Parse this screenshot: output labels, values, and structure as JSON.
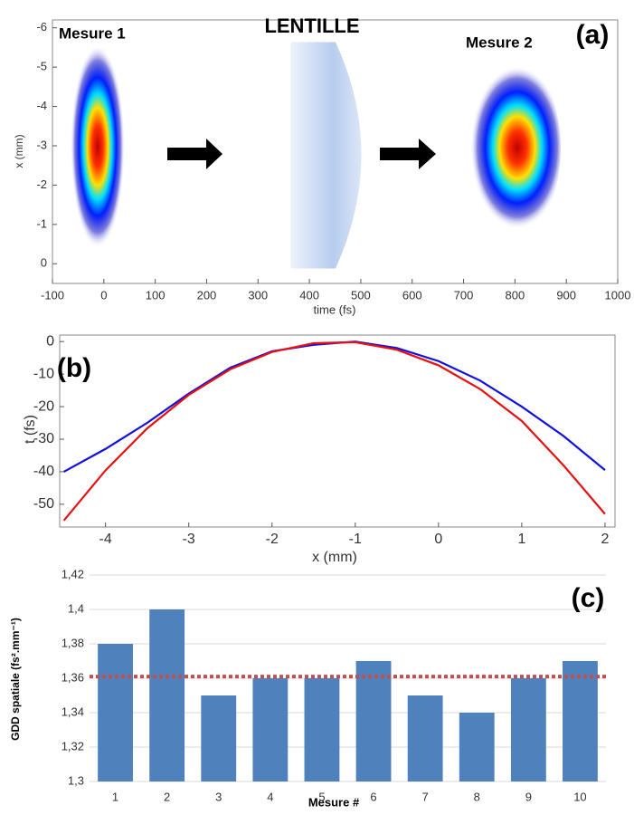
{
  "chart_data": [
    {
      "type": "image",
      "xlabel": "time (fs)",
      "ylabel": "x (mm)",
      "xlim": [
        -100,
        1000
      ],
      "xticks": [
        -100,
        0,
        100,
        200,
        300,
        400,
        500,
        600,
        700,
        800,
        900,
        1000
      ],
      "ylim": [
        0.5,
        -6.2
      ],
      "yticks": [
        -6,
        -5,
        -4,
        -3,
        -2,
        -1,
        0
      ],
      "annotations": [
        "Mesure 1",
        "LENTILLE",
        "Mesure 2"
      ],
      "panel_label": "(a)"
    },
    {
      "type": "line",
      "xlabel": "x (mm)",
      "ylabel": "t (fs)",
      "x": [
        -4.5,
        -4,
        -3.5,
        -3,
        -2.5,
        -2,
        -1.5,
        -1,
        -0.5,
        0,
        0.5,
        1,
        1.5,
        2
      ],
      "series": [
        {
          "color": "#1010e0",
          "values": [
            -40,
            -33,
            -25,
            -16,
            -8,
            -3,
            -1,
            0,
            -2,
            -6,
            -12,
            -20,
            -29,
            -39.5
          ]
        },
        {
          "color": "#e81010",
          "values": [
            -55,
            -39.6,
            -26.7,
            -16.4,
            -8.5,
            -3.2,
            -0.5,
            -0.2,
            -2.5,
            -7.3,
            -14.6,
            -24.4,
            -38,
            -53
          ]
        }
      ],
      "xlim": [
        -4.55,
        2.12
      ],
      "xticks": [
        -4,
        -3,
        -2,
        -1,
        0,
        1,
        2
      ],
      "ylim": [
        -57,
        2
      ],
      "yticks": [
        0,
        -10,
        -20,
        -30,
        -40,
        -50
      ],
      "panel_label": "(b)"
    },
    {
      "type": "bar",
      "xlabel": "Mesure #",
      "ylabel": "GDD spatiale (fs².mm⁻¹)",
      "categories": [
        "1",
        "2",
        "3",
        "4",
        "5",
        "6",
        "7",
        "8",
        "9",
        "10"
      ],
      "values": [
        1.38,
        1.4,
        1.35,
        1.36,
        1.36,
        1.37,
        1.35,
        1.34,
        1.36,
        1.37
      ],
      "color": "#4f81bd",
      "reference_line": 1.361,
      "reference_color": "#c0504d",
      "ylim": [
        1.3,
        1.42
      ],
      "yticks": [
        {
          "value": 1.3,
          "label": "1,3"
        },
        {
          "value": 1.32,
          "label": "1,32"
        },
        {
          "value": 1.34,
          "label": "1,34"
        },
        {
          "value": 1.36,
          "label": "1,36"
        },
        {
          "value": 1.38,
          "label": "1,38"
        },
        {
          "value": 1.4,
          "label": "1,4"
        },
        {
          "value": 1.42,
          "label": "1,42"
        }
      ],
      "grid": true,
      "panel_label": "(c)"
    }
  ]
}
